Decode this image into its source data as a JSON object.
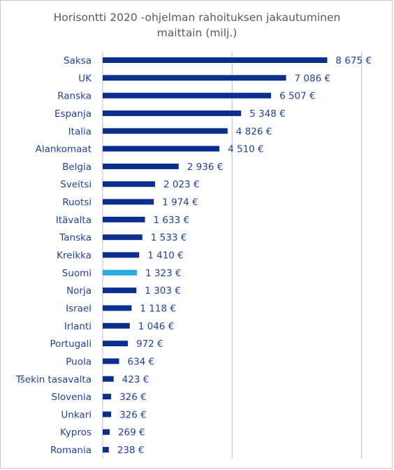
{
  "chart_data": {
    "type": "bar",
    "orientation": "horizontal",
    "title": "Horisontti 2020 -ohjelman rahoituksen jakautuminen\nmaittain  (milj.)",
    "categories": [
      "Saksa",
      "UK",
      "Ranska",
      "Espanja",
      "Italia",
      "Alankomaat",
      "Belgia",
      "Sveitsi",
      "Ruotsi",
      "Itävalta",
      "Tanska",
      "Kreikka",
      "Suomi",
      "Norja",
      "Israel",
      "Irlanti",
      "Portugali",
      "Puola",
      "Tšekin tasavalta",
      "Slovenia",
      "Unkari",
      "Kypros",
      "Romania"
    ],
    "values": [
      8675,
      7086,
      6507,
      5348,
      4826,
      4510,
      2936,
      2023,
      1974,
      1633,
      1533,
      1410,
      1323,
      1303,
      1118,
      1046,
      972,
      634,
      423,
      326,
      326,
      269,
      238
    ],
    "value_labels": [
      "8 675 €",
      "7 086 €",
      "6 507 €",
      "5 348 €",
      "4 826 €",
      "4 510 €",
      "2 936 €",
      "2 023 €",
      "1 974 €",
      "1 633 €",
      "1 533 €",
      "1 410 €",
      "1 323 €",
      "1 303 €",
      "1 118 €",
      "1 046 €",
      "972 €",
      "634 €",
      "423 €",
      "326 €",
      "326 €",
      "269 €",
      "238 €"
    ],
    "highlight_category": "Suomi",
    "xlim": [
      0,
      10000
    ],
    "grid": true,
    "colors": {
      "bar": "#0b2f8f",
      "highlight": "#29abe2",
      "text": "#1f3fa6",
      "title": "#595959",
      "grid": "#bcc7e8"
    }
  }
}
